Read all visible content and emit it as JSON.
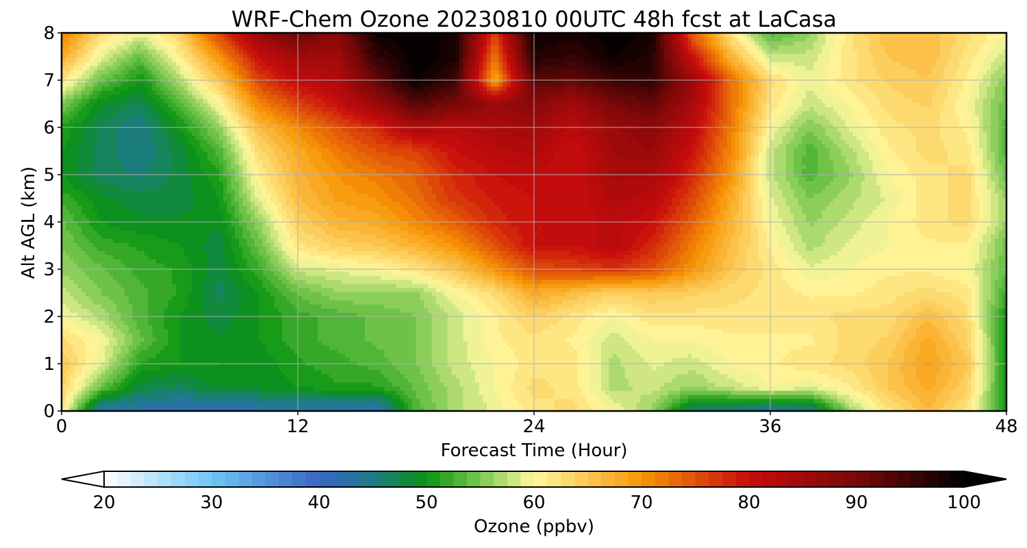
{
  "chart_data": {
    "type": "heatmap",
    "title": "WRF-Chem Ozone  20230810 00UTC 48h fcst at LaCasa",
    "xlabel": "Forecast Time (Hour)",
    "ylabel": "Alt AGL (km)",
    "xlim": [
      0,
      48
    ],
    "ylim": [
      0,
      8
    ],
    "x_ticks": [
      0,
      12,
      24,
      36,
      48
    ],
    "y_ticks": [
      0,
      1,
      2,
      3,
      4,
      5,
      6,
      7,
      8
    ],
    "grid": true,
    "colorbar": {
      "label": "Ozone  (ppbv)",
      "range": [
        20,
        100
      ],
      "ticks": [
        20,
        30,
        40,
        50,
        60,
        70,
        80,
        90,
        100
      ],
      "extend": "both",
      "stops": [
        {
          "value": 20,
          "color": "#ffffff"
        },
        {
          "value": 30,
          "color": "#6ec6f5"
        },
        {
          "value": 40,
          "color": "#3a66c4"
        },
        {
          "value": 45,
          "color": "#1d7a8a"
        },
        {
          "value": 50,
          "color": "#0a9410"
        },
        {
          "value": 55,
          "color": "#7cc850"
        },
        {
          "value": 60,
          "color": "#fff9a0"
        },
        {
          "value": 70,
          "color": "#f89606"
        },
        {
          "value": 80,
          "color": "#c80c0c"
        },
        {
          "value": 90,
          "color": "#7a0808"
        },
        {
          "value": 100,
          "color": "#000000"
        }
      ]
    },
    "x": [
      0,
      2,
      4,
      6,
      8,
      10,
      12,
      14,
      16,
      18,
      20,
      22,
      24,
      26,
      28,
      30,
      32,
      34,
      36,
      38,
      40,
      42,
      44,
      46,
      48
    ],
    "y": [
      0,
      0.5,
      1,
      1.5,
      2,
      2.5,
      3,
      3.5,
      4,
      4.5,
      5,
      5.5,
      6,
      6.5,
      7,
      7.5,
      8
    ],
    "z": [
      [
        62,
        42,
        42,
        41,
        41,
        42,
        42,
        42,
        41,
        53,
        57,
        59,
        62,
        63,
        60,
        56,
        46,
        44,
        43,
        44,
        56,
        62,
        66,
        62,
        50
      ],
      [
        64,
        54,
        48,
        47,
        49,
        49,
        50,
        51,
        51,
        54,
        57,
        60,
        63,
        62,
        57,
        58,
        56,
        58,
        60,
        59,
        61,
        65,
        68,
        64,
        50
      ],
      [
        65,
        59,
        51,
        50,
        50,
        49,
        51,
        52,
        53,
        55,
        58,
        60,
        62,
        62,
        57,
        59,
        58,
        60,
        61,
        62,
        63,
        65,
        69,
        65,
        50
      ],
      [
        63,
        60,
        54,
        50,
        49,
        50,
        52,
        53,
        54,
        55,
        58,
        61,
        62,
        61,
        58,
        60,
        60,
        61,
        61,
        61,
        63,
        64,
        68,
        64,
        50
      ],
      [
        60,
        57,
        53,
        50,
        48,
        50,
        52,
        53,
        54,
        55,
        58,
        61,
        64,
        62,
        60,
        62,
        62,
        62,
        62,
        62,
        63,
        63,
        66,
        63,
        50
      ],
      [
        58,
        55,
        53,
        51,
        47,
        50,
        54,
        56,
        56,
        56,
        60,
        63,
        68,
        66,
        64,
        65,
        64,
        63,
        62,
        61,
        61,
        62,
        63,
        62,
        52
      ],
      [
        56,
        54,
        52,
        51,
        48,
        52,
        58,
        59,
        60,
        62,
        65,
        70,
        75,
        76,
        77,
        75,
        70,
        65,
        62,
        59,
        60,
        61,
        61,
        60,
        54
      ],
      [
        55,
        52,
        51,
        50,
        48,
        54,
        62,
        64,
        65,
        67,
        70,
        75,
        80,
        80,
        82,
        78,
        72,
        66,
        61,
        57,
        59,
        60,
        61,
        61,
        54
      ],
      [
        54,
        50,
        49,
        49,
        49,
        56,
        64,
        67,
        68,
        71,
        74,
        78,
        80,
        80,
        82,
        80,
        74,
        67,
        60,
        56,
        58,
        60,
        62,
        63,
        56
      ],
      [
        52,
        49,
        48,
        48,
        50,
        59,
        66,
        69,
        70,
        73,
        77,
        79,
        80,
        80,
        83,
        82,
        76,
        68,
        59,
        55,
        57,
        59,
        62,
        63,
        56
      ],
      [
        50,
        47,
        46,
        48,
        51,
        61,
        67,
        70,
        72,
        74,
        78,
        80,
        81,
        80,
        84,
        84,
        78,
        70,
        58,
        53,
        56,
        60,
        62,
        63,
        54
      ],
      [
        50,
        47,
        45,
        48,
        53,
        63,
        68,
        72,
        75,
        76,
        80,
        82,
        83,
        80,
        85,
        86,
        80,
        71,
        58,
        53,
        57,
        61,
        63,
        62,
        53
      ],
      [
        51,
        47,
        45,
        50,
        56,
        66,
        71,
        75,
        78,
        84,
        82,
        84,
        85,
        82,
        86,
        88,
        82,
        72,
        60,
        55,
        59,
        62,
        63,
        61,
        53
      ],
      [
        55,
        49,
        47,
        53,
        60,
        71,
        76,
        80,
        86,
        93,
        90,
        86,
        88,
        85,
        90,
        92,
        84,
        73,
        62,
        58,
        60,
        63,
        64,
        60,
        54
      ],
      [
        62,
        54,
        50,
        57,
        65,
        76,
        81,
        83,
        92,
        99,
        95,
        68,
        93,
        92,
        95,
        96,
        86,
        73,
        63,
        59,
        62,
        64,
        65,
        61,
        55
      ],
      [
        68,
        59,
        54,
        61,
        70,
        80,
        85,
        85,
        96,
        100,
        98,
        72,
        97,
        96,
        99,
        97,
        80,
        67,
        58,
        58,
        62,
        65,
        66,
        62,
        58
      ],
      [
        72,
        63,
        59,
        64,
        76,
        86,
        92,
        88,
        99,
        100,
        98,
        76,
        99,
        98,
        100,
        98,
        74,
        62,
        53,
        56,
        62,
        66,
        66,
        63,
        60
      ]
    ]
  }
}
